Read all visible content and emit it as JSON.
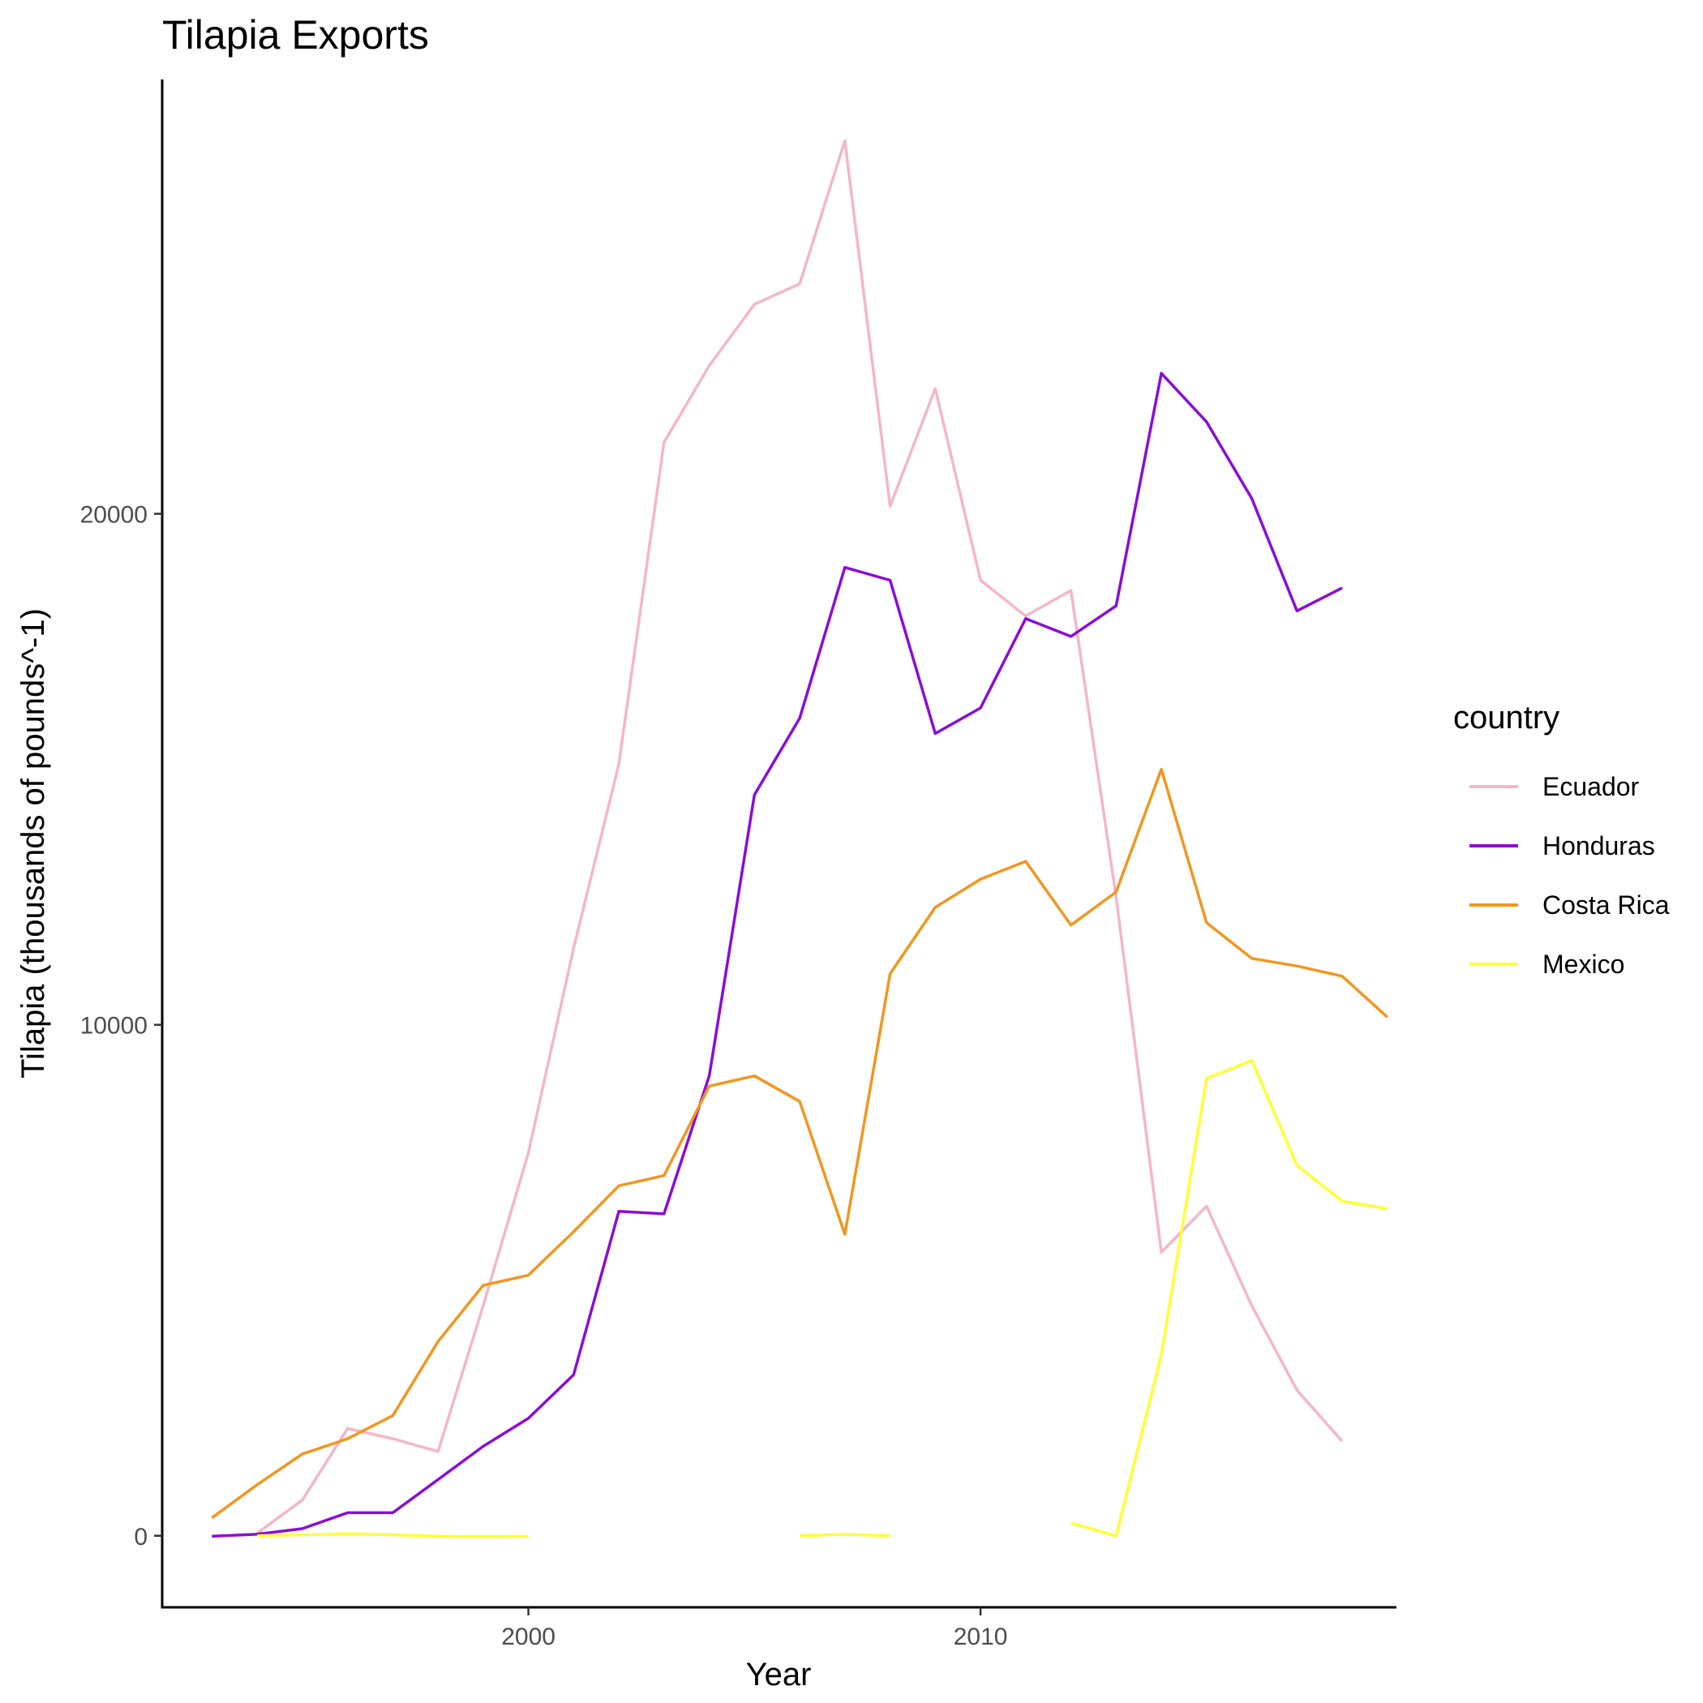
{
  "chart_data": {
    "type": "line",
    "title": "Tilapia Exports",
    "xlabel": "Year",
    "ylabel": "Tilapia (thousands of pounds^-1)",
    "xlim": [
      1991.9,
      2019.2
    ],
    "ylim": [
      -1400,
      28500
    ],
    "x_ticks": [
      2000,
      2010
    ],
    "y_ticks": [
      0,
      10000,
      20000
    ],
    "grid": false,
    "legend": {
      "title": "country",
      "position": "right"
    },
    "series": [
      {
        "name": "Ecuador",
        "color": "#F4B6C8",
        "points": [
          [
            1994,
            50
          ],
          [
            1995,
            700
          ],
          [
            1996,
            2100
          ],
          [
            1997,
            1900
          ],
          [
            1998,
            1650
          ],
          [
            1999,
            4500
          ],
          [
            2000,
            7500
          ],
          [
            2001,
            11500
          ],
          [
            2002,
            15100
          ],
          [
            2003,
            21400
          ],
          [
            2004,
            22900
          ],
          [
            2005,
            24100
          ],
          [
            2006,
            24500
          ],
          [
            2007,
            27300
          ],
          [
            2008,
            20150
          ],
          [
            2009,
            22450
          ],
          [
            2010,
            18700
          ],
          [
            2011,
            18000
          ],
          [
            2012,
            18500
          ],
          [
            2013,
            12500
          ],
          [
            2014,
            5550
          ],
          [
            2015,
            6450
          ],
          [
            2016,
            4500
          ],
          [
            2017,
            2850
          ],
          [
            2018,
            1850
          ]
        ]
      },
      {
        "name": "Honduras",
        "color": "#8A0CD9",
        "points": [
          [
            1993,
            -10
          ],
          [
            1994,
            30
          ],
          [
            1995,
            140
          ],
          [
            1996,
            450
          ],
          [
            1997,
            450
          ],
          [
            1998,
            1100
          ],
          [
            1999,
            1750
          ],
          [
            2000,
            2300
          ],
          [
            2001,
            3150
          ],
          [
            2002,
            6350
          ],
          [
            2003,
            6300
          ],
          [
            2004,
            9000
          ],
          [
            2005,
            14500
          ],
          [
            2006,
            16000
          ],
          [
            2007,
            18950
          ],
          [
            2008,
            18700
          ],
          [
            2009,
            15700
          ],
          [
            2010,
            16200
          ],
          [
            2011,
            17950
          ],
          [
            2012,
            17600
          ],
          [
            2013,
            18200
          ],
          [
            2014,
            22750
          ],
          [
            2015,
            21800
          ],
          [
            2016,
            20300
          ],
          [
            2017,
            18100
          ],
          [
            2018,
            18550
          ]
        ]
      },
      {
        "name": "Costa Rica",
        "color": "#F2961F",
        "points": [
          [
            1993,
            350
          ],
          [
            1994,
            1000
          ],
          [
            1995,
            1600
          ],
          [
            1996,
            1900
          ],
          [
            1997,
            2350
          ],
          [
            1998,
            3800
          ],
          [
            1999,
            4900
          ],
          [
            2000,
            5100
          ],
          [
            2001,
            5950
          ],
          [
            2002,
            6850
          ],
          [
            2003,
            7050
          ],
          [
            2004,
            8800
          ],
          [
            2005,
            9000
          ],
          [
            2006,
            8500
          ],
          [
            2007,
            5900
          ],
          [
            2008,
            11000
          ],
          [
            2009,
            12300
          ],
          [
            2010,
            12850
          ],
          [
            2011,
            13200
          ],
          [
            2012,
            11950
          ],
          [
            2013,
            12600
          ],
          [
            2014,
            15000
          ],
          [
            2015,
            12000
          ],
          [
            2016,
            11300
          ],
          [
            2017,
            11150
          ],
          [
            2018,
            10950
          ],
          [
            2019,
            10150
          ]
        ]
      },
      {
        "name": "Mexico",
        "color": "#FFFF33",
        "segments": [
          [
            [
              1994,
              0
            ],
            [
              1995,
              20
            ],
            [
              1996,
              40
            ],
            [
              1997,
              20
            ],
            [
              1998,
              -10
            ],
            [
              1999,
              -20
            ],
            [
              2000,
              -10
            ]
          ],
          [
            [
              2006,
              0
            ],
            [
              2007,
              30
            ],
            [
              2008,
              0
            ]
          ],
          [
            [
              2012,
              250
            ],
            [
              2013,
              0
            ],
            [
              2014,
              3550
            ],
            [
              2015,
              8950
            ],
            [
              2016,
              9300
            ],
            [
              2017,
              7250
            ],
            [
              2018,
              6550
            ],
            [
              2019,
              6400
            ]
          ]
        ]
      }
    ]
  }
}
